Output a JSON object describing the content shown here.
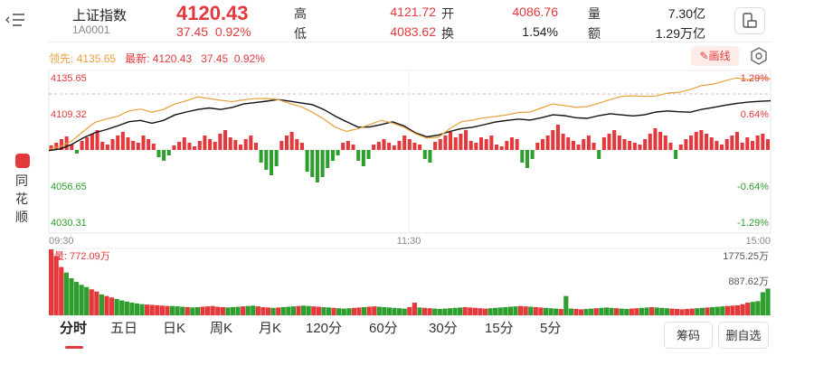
{
  "header": {
    "index_name": "上证指数",
    "index_code": "1A0001",
    "price": "4120.43",
    "change": "37.45",
    "change_pct": "0.92%",
    "stats": [
      {
        "label": "高",
        "value": "4121.72",
        "color": "#e4393c"
      },
      {
        "label": "开",
        "value": "4086.76",
        "color": "#e4393c"
      },
      {
        "label": "量",
        "value": "7.30亿",
        "color": "#222222"
      },
      {
        "label": "低",
        "value": "4083.62",
        "color": "#e4393c"
      },
      {
        "label": "换",
        "value": "1.54%",
        "color": "#222222"
      },
      {
        "label": "额",
        "value": "1.29万亿",
        "color": "#222222"
      }
    ]
  },
  "infobar": {
    "lead_label": "领先:",
    "lead_value": "4135.65",
    "latest_label": "最新:",
    "latest_price": "4120.43",
    "latest_change": "37.45",
    "latest_pct": "0.92%"
  },
  "toolbar": {
    "draw_label": "画线"
  },
  "left_panel": {
    "label": "同花顺"
  },
  "chart_data": {
    "type": "line",
    "title": "",
    "price_axis": {
      "ticks": [
        "4135.65",
        "4109.32",
        "4056.65",
        "4030.31"
      ],
      "range": [
        4030.31,
        4135.65
      ],
      "prev_close": 4082.98
    },
    "pct_axis": {
      "ticks": [
        "1.29%",
        "0.64%",
        "-0.64%",
        "-1.29%"
      ]
    },
    "time_ticks": [
      "09:30",
      "11:30",
      "15:00"
    ],
    "series": [
      {
        "name": "最新",
        "color": "#111111",
        "values": [
          4082.5,
          4083.8,
          4087.0,
          4091.8,
          4095.5,
          4097.8,
          4100.5,
          4103.6,
          4104.5,
          4102.5,
          4104.5,
          4108.5,
          4110.6,
          4112.5,
          4113.6,
          4112.5,
          4114.0,
          4116.5,
          4117.5,
          4118.5,
          4119.7,
          4118.6,
          4117.3,
          4116.0,
          4112.5,
          4107.6,
          4103.5,
          4099.6,
          4099.8,
          4101.5,
          4103.5,
          4100.5,
          4095.5,
          4092.5,
          4093.8,
          4096.5,
          4098.5,
          4099.6,
          4101.4,
          4103.4,
          4104.5,
          4105.5,
          4104.8,
          4106.5,
          4108.6,
          4108.0,
          4106.5,
          4106.0,
          4108.0,
          4109.4,
          4108.5,
          4107.8,
          4108.6,
          4110.6,
          4111.4,
          4110.8,
          4110.5,
          4112.6,
          4114.0,
          4115.5,
          4116.8,
          4117.8,
          4118.4,
          4118.8
        ]
      },
      {
        "name": "领先",
        "color": "#e8a03a",
        "values": [
          4083.6,
          4085.5,
          4089.5,
          4096.5,
          4103.0,
          4105.5,
          4107.5,
          4111.5,
          4112.8,
          4110.5,
          4112.5,
          4116.5,
          4118.8,
          4121.6,
          4120.4,
          4119.2,
          4118.2,
          4119.5,
          4120.4,
          4120.5,
          4119.8,
          4116.8,
          4114.5,
          4110.5,
          4105.5,
          4099.5,
          4096.5,
          4098.5,
          4101.5,
          4104.6,
          4102.6,
          4099.5,
          4094.8,
          4091.6,
          4092.2,
          4098.5,
          4103.5,
          4104.8,
          4106.5,
          4107.4,
          4108.6,
          4110.3,
          4110.6,
          4113.6,
          4116.5,
          4115.4,
          4114.0,
          4114.6,
          4117.0,
          4119.7,
          4122.0,
          4122.5,
          4122.0,
          4122.3,
          4124.4,
          4125.0,
          4127.0,
          4130.0,
          4131.0,
          4133.3,
          4135.5,
          4134.3,
          4135.2,
          4134.8
        ]
      }
    ],
    "breadth_bars": [
      5,
      8,
      12,
      15,
      6,
      -4,
      10,
      14,
      18,
      22,
      9,
      6,
      12,
      16,
      20,
      14,
      10,
      8,
      16,
      12,
      7,
      -8,
      -12,
      -6,
      5,
      9,
      14,
      8,
      4,
      10,
      16,
      12,
      9,
      18,
      22,
      14,
      11,
      6,
      12,
      16,
      8,
      -14,
      -22,
      -28,
      -18,
      10,
      16,
      20,
      12,
      8,
      -24,
      -30,
      -36,
      -30,
      -20,
      -12,
      -6,
      8,
      10,
      6,
      -12,
      -18,
      -10,
      6,
      9,
      12,
      8,
      5,
      10,
      16,
      12,
      8,
      6,
      -10,
      -14,
      9,
      12,
      16,
      20,
      14,
      18,
      22,
      10,
      8,
      14,
      12,
      16,
      6,
      4,
      10,
      14,
      12,
      -14,
      -20,
      -10,
      8,
      12,
      16,
      22,
      28,
      18,
      14,
      10,
      6,
      12,
      16,
      8,
      -10,
      14,
      18,
      22,
      16,
      12,
      10,
      8,
      6,
      12,
      18,
      24,
      20,
      16,
      8,
      -10,
      6,
      12,
      16,
      20,
      22,
      18,
      14,
      10,
      6,
      12,
      16,
      20,
      8,
      14,
      10,
      16,
      18,
      12
    ],
    "volume_axis": {
      "top_label": "772.09万",
      "ticks": [
        "1775.25万",
        "887.62万"
      ]
    },
    "volume_bars": [
      1775,
      1600,
      1300,
      1150,
      1000,
      900,
      820,
      760,
      700,
      640,
      560,
      520,
      480,
      440,
      400,
      370,
      340,
      320,
      300,
      290,
      280,
      270,
      260,
      250,
      250,
      240,
      230,
      220,
      210,
      220,
      230,
      240,
      250,
      230,
      220,
      210,
      220,
      230,
      240,
      250,
      260,
      240,
      220,
      210,
      200,
      210,
      220,
      230,
      240,
      250,
      260,
      250,
      240,
      230,
      220,
      210,
      200,
      190,
      180,
      190,
      200,
      210,
      220,
      230,
      240,
      230,
      220,
      210,
      200,
      190,
      180,
      220,
      340,
      210,
      200,
      190,
      180,
      170,
      180,
      190,
      200,
      210,
      220,
      210,
      200,
      190,
      180,
      190,
      200,
      210,
      220,
      230,
      240,
      250,
      240,
      230,
      220,
      210,
      200,
      190,
      180,
      170,
      520,
      180,
      170,
      160,
      170,
      180,
      190,
      200,
      210,
      200,
      190,
      180,
      170,
      180,
      190,
      200,
      210,
      220,
      210,
      200,
      190,
      180,
      170,
      160,
      170,
      180,
      190,
      200,
      210,
      220,
      230,
      240,
      250,
      260,
      270,
      300,
      340,
      360,
      380,
      620,
      720
    ]
  },
  "tabs": [
    {
      "label": "分时",
      "active": true
    },
    {
      "label": "五日",
      "active": false
    },
    {
      "label": "日K",
      "active": false
    },
    {
      "label": "周K",
      "active": false
    },
    {
      "label": "月K",
      "active": false
    },
    {
      "label": "120分",
      "active": false
    },
    {
      "label": "60分",
      "active": false
    },
    {
      "label": "30分",
      "active": false
    },
    {
      "label": "15分",
      "active": false
    },
    {
      "label": "5分",
      "active": false
    }
  ],
  "actions": {
    "chips_label": "筹码",
    "remove_label": "删自选"
  },
  "colors": {
    "up": "#e4393c",
    "down": "#2e9e2e",
    "grid": "#eeeeee"
  }
}
